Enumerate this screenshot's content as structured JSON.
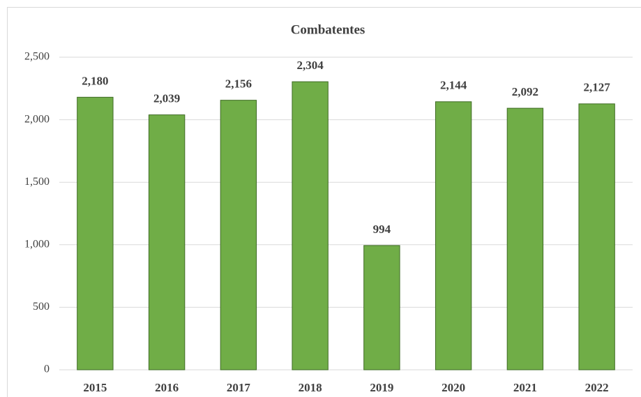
{
  "chart_data": {
    "type": "bar",
    "title": "Combatentes",
    "categories": [
      "2015",
      "2016",
      "2017",
      "2018",
      "2019",
      "2020",
      "2021",
      "2022"
    ],
    "values": [
      2180,
      2039,
      2156,
      2304,
      994,
      2144,
      2092,
      2127
    ],
    "value_labels": [
      "2,180",
      "2,039",
      "2,156",
      "2,304",
      "994",
      "2,144",
      "2,092",
      "2,127"
    ],
    "color": "#70ad47",
    "ylim": [
      0,
      2500
    ],
    "yticks": [
      0,
      500,
      {
        "value": 1000,
        "label": "1,000"
      },
      {
        "value": 1500,
        "label": "1,500"
      },
      {
        "value": 2000,
        "label": "2,000"
      },
      {
        "value": 2500,
        "label": "2,500"
      }
    ],
    "grid": true
  }
}
